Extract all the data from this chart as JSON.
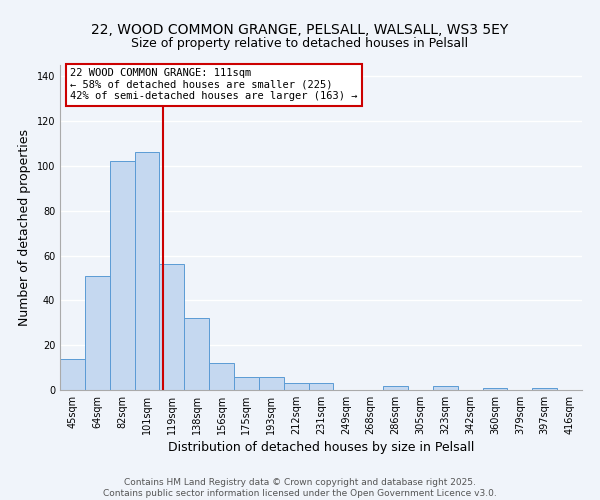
{
  "title": "22, WOOD COMMON GRANGE, PELSALL, WALSALL, WS3 5EY",
  "subtitle": "Size of property relative to detached houses in Pelsall",
  "xlabel": "Distribution of detached houses by size in Pelsall",
  "ylabel": "Number of detached properties",
  "categories": [
    "45sqm",
    "64sqm",
    "82sqm",
    "101sqm",
    "119sqm",
    "138sqm",
    "156sqm",
    "175sqm",
    "193sqm",
    "212sqm",
    "231sqm",
    "249sqm",
    "268sqm",
    "286sqm",
    "305sqm",
    "323sqm",
    "342sqm",
    "360sqm",
    "379sqm",
    "397sqm",
    "416sqm"
  ],
  "values": [
    14,
    51,
    102,
    106,
    56,
    32,
    12,
    6,
    6,
    3,
    3,
    0,
    0,
    2,
    0,
    2,
    0,
    1,
    0,
    1,
    0
  ],
  "bar_color": "#c5d8f0",
  "bar_edge_color": "#5b9bd5",
  "bar_width": 1.0,
  "ylim": [
    0,
    145
  ],
  "yticks": [
    0,
    20,
    40,
    60,
    80,
    100,
    120,
    140
  ],
  "property_label": "22 WOOD COMMON GRANGE: 111sqm",
  "annotation_line1": "← 58% of detached houses are smaller (225)",
  "annotation_line2": "42% of semi-detached houses are larger (163) →",
  "annotation_box_color": "#ffffff",
  "annotation_box_edge": "#cc0000",
  "vline_color": "#cc0000",
  "vline_x": 3.65,
  "footer1": "Contains HM Land Registry data © Crown copyright and database right 2025.",
  "footer2": "Contains public sector information licensed under the Open Government Licence v3.0.",
  "bg_color": "#f0f4fa",
  "grid_color": "#ffffff",
  "title_fontsize": 10,
  "subtitle_fontsize": 9,
  "label_fontsize": 9,
  "tick_fontsize": 7,
  "annotation_fontsize": 7.5,
  "footer_fontsize": 6.5
}
